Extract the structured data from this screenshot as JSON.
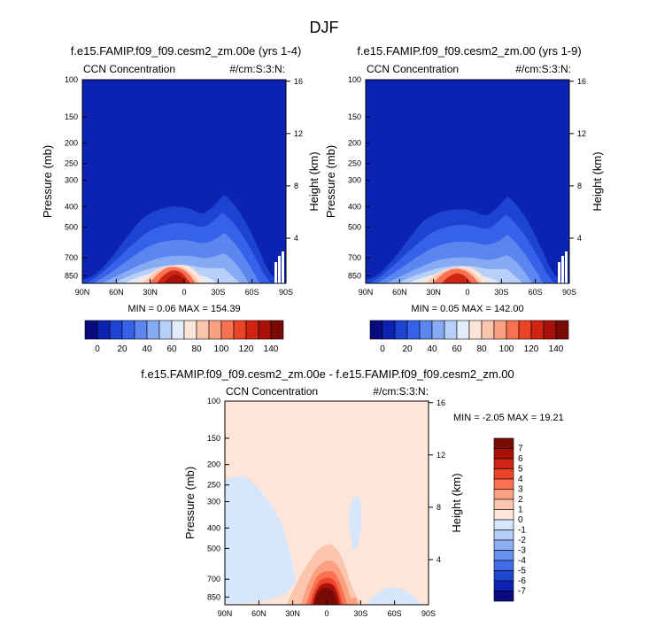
{
  "figure_title": "DJF",
  "chart_data": [
    {
      "type": "contour",
      "title": "f.e15.FAMIP.f09_f09.cesm2_zm.00e (yrs 1-4)",
      "left_label": "CCN Concentration",
      "right_label": "#/cm:S:3:N:",
      "ylabel": "Pressure (mb)",
      "ylabel_right": "Height (km)",
      "x_ticks": [
        "90N",
        "60N",
        "30N",
        "0",
        "30S",
        "60S",
        "90S"
      ],
      "y_ticks": [
        "100",
        "150",
        "200",
        "250",
        "300",
        "400",
        "500",
        "700",
        "850"
      ],
      "y_ticks_right": [
        "16",
        "12",
        "8",
        "4"
      ],
      "stats": "MIN =  0.06  MAX = 154.39",
      "colorbar_levels": [
        "0",
        "20",
        "40",
        "60",
        "80",
        "100",
        "120",
        "140"
      ],
      "colors": [
        "#0a0a7f",
        "#0c23b2",
        "#1d43d2",
        "#3562e8",
        "#5b86f0",
        "#87aaf5",
        "#b8cff8",
        "#e2ecfb",
        "#fde5d9",
        "#fcc6ae",
        "#fba080",
        "#f87251",
        "#ea4526",
        "#cf2411",
        "#a91108",
        "#7a0a05"
      ]
    },
    {
      "type": "contour",
      "title": "f.e15.FAMIP.f09_f09.cesm2_zm.00 (yrs 1-9)",
      "left_label": "CCN Concentration",
      "right_label": "#/cm:S:3:N:",
      "ylabel": "Pressure (mb)",
      "ylabel_right": "Height (km)",
      "x_ticks": [
        "90N",
        "60N",
        "30N",
        "0",
        "30S",
        "60S",
        "90S"
      ],
      "y_ticks": [
        "100",
        "150",
        "200",
        "250",
        "300",
        "400",
        "500",
        "700",
        "850"
      ],
      "y_ticks_right": [
        "16",
        "12",
        "8",
        "4"
      ],
      "stats": "MIN =  0.05  MAX = 142.00",
      "colorbar_levels": [
        "0",
        "20",
        "40",
        "60",
        "80",
        "100",
        "120",
        "140"
      ],
      "colors": [
        "#0a0a7f",
        "#0c23b2",
        "#1d43d2",
        "#3562e8",
        "#5b86f0",
        "#87aaf5",
        "#b8cff8",
        "#e2ecfb",
        "#fde5d9",
        "#fcc6ae",
        "#fba080",
        "#f87251",
        "#ea4526",
        "#cf2411",
        "#a91108",
        "#7a0a05"
      ]
    },
    {
      "type": "contour",
      "title": "f.e15.FAMIP.f09_f09.cesm2_zm.00e - f.e15.FAMIP.f09_f09.cesm2_zm.00",
      "left_label": "CCN Concentration",
      "right_label": "#/cm:S:3:N:",
      "ylabel": "Pressure (mb)",
      "ylabel_right": "Height (km)",
      "x_ticks": [
        "90N",
        "60N",
        "30N",
        "0",
        "30S",
        "60S",
        "90S"
      ],
      "y_ticks": [
        "100",
        "150",
        "200",
        "250",
        "300",
        "400",
        "500",
        "700",
        "850"
      ],
      "y_ticks_right": [
        "16",
        "12",
        "8",
        "4"
      ],
      "stats": "MIN = -2.05  MAX = 19.21",
      "colorbar_levels": [
        "7",
        "6",
        "5",
        "4",
        "3",
        "2",
        "1",
        "0",
        "-1",
        "-2",
        "-3",
        "-4",
        "-5",
        "-6",
        "-7"
      ],
      "colors": [
        "#7a0a05",
        "#a91108",
        "#cf2411",
        "#ea4526",
        "#f87251",
        "#fba080",
        "#fcc6ae",
        "#fde5d9",
        "#d6e6fb",
        "#b4ccf7",
        "#8eaff3",
        "#6890ee",
        "#416de6",
        "#1e48d2",
        "#0c23b2",
        "#0a0a7f"
      ]
    }
  ]
}
